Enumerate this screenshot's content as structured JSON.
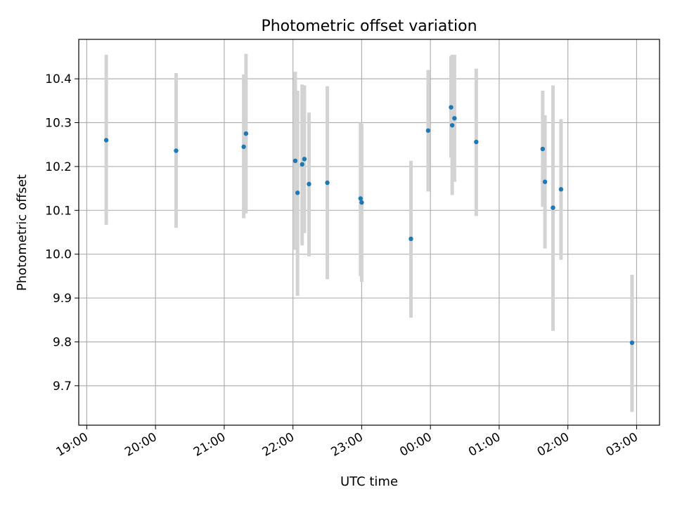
{
  "chart_data": {
    "type": "scatter",
    "title": "Photometric offset variation",
    "xlabel": "UTC time",
    "ylabel": "Photometric offset",
    "x_unit": "UTC hour (hours after 19:00 map onward; ticks 19:00–03:00)",
    "xlim": [
      "18:53",
      "03:20"
    ],
    "ylim": [
      9.61,
      10.49
    ],
    "grid": true,
    "x_ticks": [
      "19:00",
      "20:00",
      "21:00",
      "22:00",
      "23:00",
      "00:00",
      "01:00",
      "02:00",
      "03:00"
    ],
    "y_ticks": [
      "9.7",
      "9.8",
      "9.9",
      "10.0",
      "10.1",
      "10.2",
      "10.3",
      "10.4"
    ],
    "colors": {
      "point": "#1f77b4",
      "errorbar": "#d3d3d3",
      "grid": "#b0b0b0"
    },
    "points": [
      {
        "time": "19:17",
        "y": 10.26,
        "lo": 10.067,
        "hi": 10.455
      },
      {
        "time": "20:18",
        "y": 10.236,
        "lo": 10.06,
        "hi": 10.413
      },
      {
        "time": "21:17",
        "y": 10.245,
        "lo": 10.082,
        "hi": 10.41
      },
      {
        "time": "21:19",
        "y": 10.275,
        "lo": 10.093,
        "hi": 10.457
      },
      {
        "time": "22:02",
        "y": 10.213,
        "lo": 10.01,
        "hi": 10.416
      },
      {
        "time": "22:04",
        "y": 10.14,
        "lo": 9.905,
        "hi": 10.373
      },
      {
        "time": "22:08",
        "y": 10.205,
        "lo": 10.02,
        "hi": 10.387
      },
      {
        "time": "22:10",
        "y": 10.217,
        "lo": 10.048,
        "hi": 10.385
      },
      {
        "time": "22:14",
        "y": 10.16,
        "lo": 9.995,
        "hi": 10.323
      },
      {
        "time": "22:30",
        "y": 10.163,
        "lo": 9.943,
        "hi": 10.383
      },
      {
        "time": "22:59",
        "y": 10.127,
        "lo": 9.95,
        "hi": 10.3
      },
      {
        "time": "23:00",
        "y": 10.118,
        "lo": 9.937,
        "hi": 10.297
      },
      {
        "time": "23:43",
        "y": 10.035,
        "lo": 9.855,
        "hi": 10.213
      },
      {
        "time": "23:58",
        "y": 10.282,
        "lo": 10.143,
        "hi": 10.42
      },
      {
        "time": "00:18",
        "y": 10.335,
        "lo": 10.22,
        "hi": 10.452
      },
      {
        "time": "00:19",
        "y": 10.294,
        "lo": 10.135,
        "hi": 10.455
      },
      {
        "time": "00:21",
        "y": 10.31,
        "lo": 10.165,
        "hi": 10.455
      },
      {
        "time": "00:40",
        "y": 10.256,
        "lo": 10.087,
        "hi": 10.423
      },
      {
        "time": "01:38",
        "y": 10.24,
        "lo": 10.108,
        "hi": 10.373
      },
      {
        "time": "01:40",
        "y": 10.165,
        "lo": 10.013,
        "hi": 10.317
      },
      {
        "time": "01:47",
        "y": 10.106,
        "lo": 9.825,
        "hi": 10.385
      },
      {
        "time": "01:54",
        "y": 10.148,
        "lo": 9.987,
        "hi": 10.308
      },
      {
        "time": "02:56",
        "y": 9.798,
        "lo": 9.64,
        "hi": 9.953
      }
    ]
  }
}
